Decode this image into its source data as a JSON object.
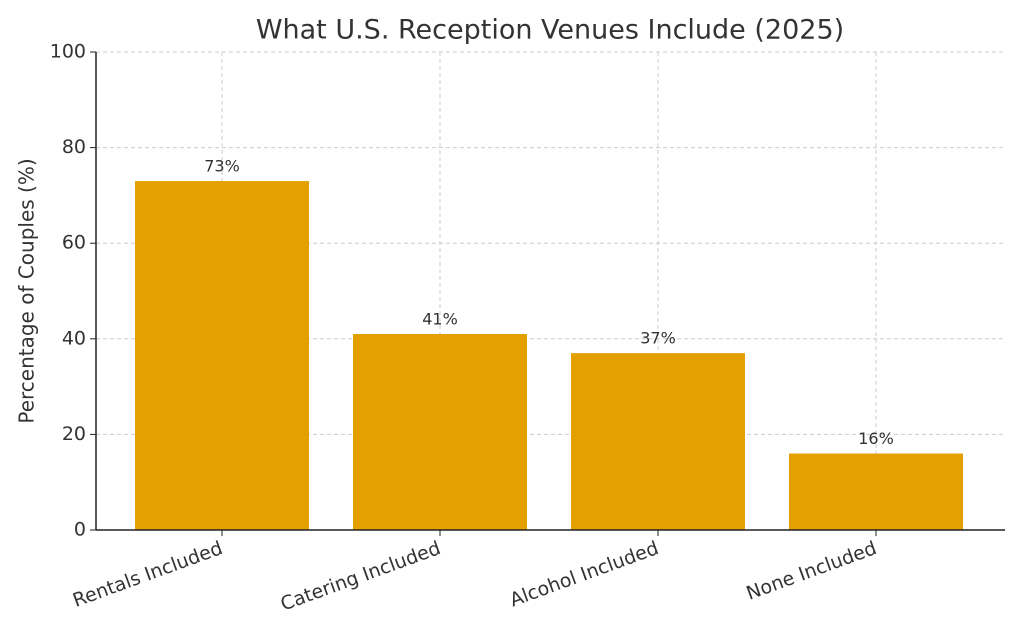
{
  "chart_data": {
    "type": "bar",
    "title": "What U.S. Reception Venues Include (2025)",
    "y_label": "Percentage of Couples (%)",
    "categories": [
      "Rentals Included",
      "Catering Included",
      "Alcohol Included",
      "None Included"
    ],
    "values": [
      73,
      41,
      37,
      16
    ],
    "value_labels": [
      "73%",
      "41%",
      "37%",
      "16%"
    ],
    "color": "#e3a000",
    "ylim": [
      0,
      100
    ],
    "yticks": [
      0,
      20,
      40,
      60,
      80,
      100
    ],
    "grid": true
  }
}
